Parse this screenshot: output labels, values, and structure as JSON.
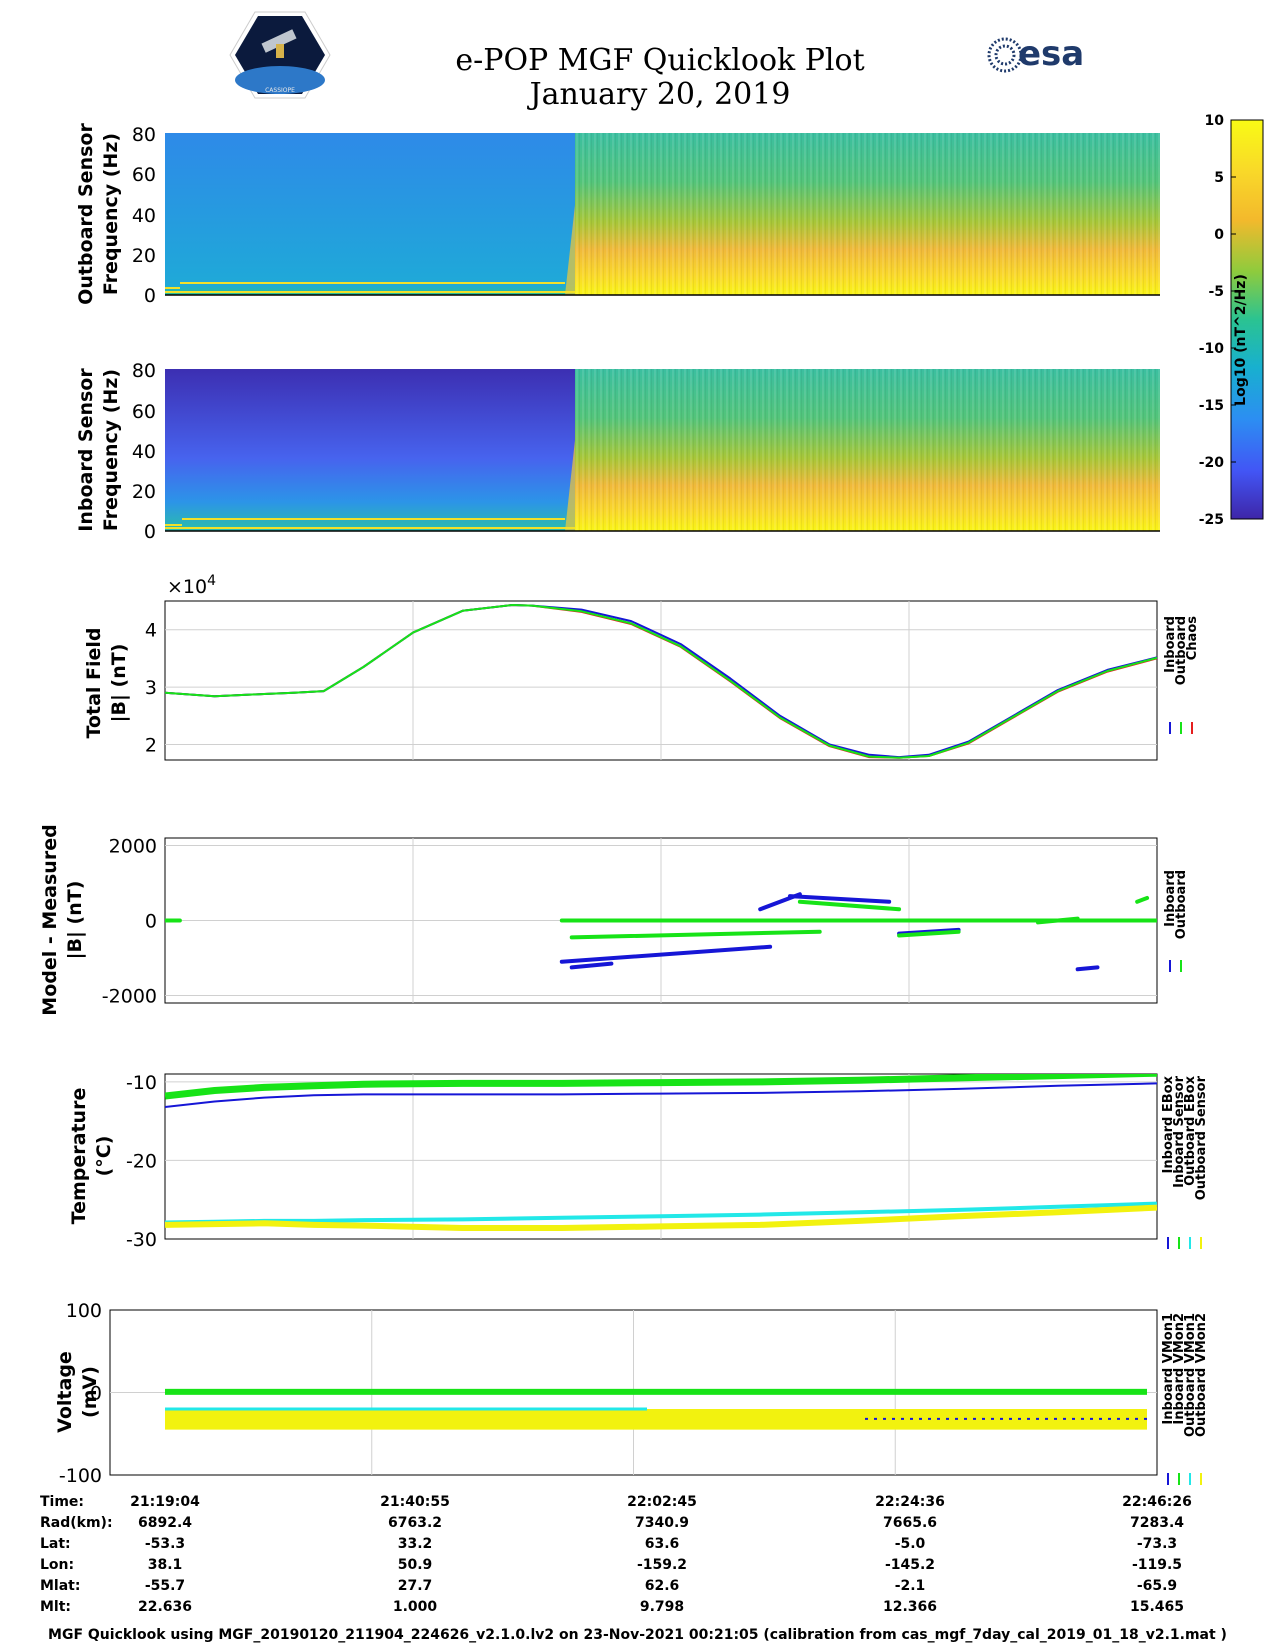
{
  "title": {
    "line1": "e-POP MGF Quicklook Plot",
    "line2": "January 20, 2019"
  },
  "logos": {
    "left_text": "CASSIOPE",
    "right_text": "esa"
  },
  "colorbar": {
    "label": "Log10 (nT^2/Hz)",
    "ticks": [
      10,
      5,
      0,
      -5,
      -10,
      -15,
      -20,
      -25
    ],
    "range": [
      -25,
      10
    ],
    "colormap": [
      "#3e26a8",
      "#4255f5",
      "#2c8ef2",
      "#18b0cf",
      "#2bc391",
      "#8ecb3d",
      "#f3b92c",
      "#f9d829",
      "#f9fb15"
    ]
  },
  "x_ticks": [
    "21:19:04",
    "21:40:55",
    "22:02:45",
    "22:24:36",
    "22:46:26"
  ],
  "chart_data": [
    {
      "type": "heatmap",
      "name": "outboard-spectrogram",
      "ylabel_line1": "Outboard Sensor",
      "ylabel_line2": "Frequency (Hz)",
      "ylim": [
        0,
        80
      ],
      "yticks": [
        80,
        60,
        40,
        20,
        0
      ],
      "transition_fraction": 0.41
    },
    {
      "type": "heatmap",
      "name": "inboard-spectrogram",
      "ylabel_line1": "Inboard Sensor",
      "ylabel_line2": "Frequency (Hz)",
      "ylim": [
        0,
        80
      ],
      "yticks": [
        80,
        60,
        40,
        20,
        0
      ],
      "transition_fraction": 0.41
    },
    {
      "type": "line",
      "name": "total-field",
      "ylabel_line1": "Total Field",
      "ylabel_line2": "|B| (nT)",
      "ylim": [
        1.73,
        4.5
      ],
      "yticks": [
        4,
        3,
        2
      ],
      "exponent_label": "×10",
      "exponent_power": "4",
      "x": [
        0,
        0.05,
        0.1,
        0.13,
        0.16,
        0.2,
        0.25,
        0.3,
        0.35,
        0.37,
        0.42,
        0.47,
        0.52,
        0.57,
        0.62,
        0.67,
        0.71,
        0.74,
        0.77,
        0.81,
        0.85,
        0.9,
        0.95,
        1.0
      ],
      "series": [
        {
          "name": "Inboard",
          "color": "#1616d6",
          "values": [
            2.9,
            2.84,
            2.88,
            2.9,
            2.93,
            3.35,
            3.95,
            4.33,
            4.43,
            4.42,
            4.35,
            4.15,
            3.75,
            3.15,
            2.5,
            2.0,
            1.82,
            1.78,
            1.82,
            2.05,
            2.45,
            2.95,
            3.3,
            3.52
          ]
        },
        {
          "name": "Outboard",
          "color": "#17e317",
          "values": [
            2.9,
            2.84,
            2.88,
            2.9,
            2.93,
            3.35,
            3.95,
            4.33,
            4.43,
            4.42,
            4.32,
            4.11,
            3.71,
            3.11,
            2.47,
            1.98,
            1.79,
            1.77,
            1.8,
            2.03,
            2.43,
            2.93,
            3.28,
            3.51
          ]
        },
        {
          "name": "Chaos",
          "color": "#e51e1e",
          "values": [
            2.9,
            2.84,
            2.88,
            2.9,
            2.93,
            3.35,
            3.95,
            4.33,
            4.43,
            4.42,
            4.31,
            4.1,
            3.7,
            3.1,
            2.46,
            1.97,
            1.78,
            1.77,
            1.8,
            2.02,
            2.42,
            2.92,
            3.27,
            3.5
          ]
        }
      ]
    },
    {
      "type": "scatter",
      "name": "model-minus-measured",
      "ylabel_line1": "Model - Measured",
      "ylabel_line2": "|B| (nT)",
      "ylim": [
        -2200,
        2200
      ],
      "yticks": [
        2000,
        0,
        -2000
      ],
      "series": [
        {
          "name": "Inboard",
          "color": "#1616d6",
          "segments": [
            [
              0.4,
              0.61,
              -1100,
              -700
            ],
            [
              0.41,
              0.45,
              -1250,
              -1150
            ],
            [
              0.6,
              0.64,
              300,
              700
            ],
            [
              0.63,
              0.73,
              650,
              500
            ],
            [
              0.74,
              0.8,
              -350,
              -250
            ],
            [
              0.92,
              0.94,
              -1300,
              -1250
            ]
          ]
        },
        {
          "name": "Outboard",
          "color": "#17e317",
          "segments": [
            [
              0.0,
              0.015,
              0,
              0
            ],
            [
              0.4,
              1.0,
              0,
              0
            ],
            [
              0.41,
              0.66,
              -450,
              -300
            ],
            [
              0.64,
              0.74,
              500,
              300
            ],
            [
              0.74,
              0.8,
              -400,
              -300
            ],
            [
              0.88,
              0.92,
              -50,
              50
            ],
            [
              0.98,
              0.99,
              500,
              600
            ]
          ]
        }
      ]
    },
    {
      "type": "line",
      "name": "temperature",
      "ylabel_line1": "Temperature",
      "ylabel_line2": "(°C)",
      "ylim": [
        -30,
        -9
      ],
      "yticks": [
        -10,
        -20,
        -30
      ],
      "x": [
        0,
        0.05,
        0.1,
        0.15,
        0.2,
        0.3,
        0.4,
        0.5,
        0.6,
        0.7,
        0.8,
        0.9,
        1.0
      ],
      "series": [
        {
          "name": "Inboard EBox",
          "color": "#1616d6",
          "values": [
            -13.2,
            -12.5,
            -12.0,
            -11.7,
            -11.6,
            -11.6,
            -11.6,
            -11.5,
            -11.4,
            -11.2,
            -10.9,
            -10.5,
            -10.2
          ]
        },
        {
          "name": "Inboard Sensor",
          "color": "#17e317",
          "values": [
            -11.8,
            -11.1,
            -10.7,
            -10.5,
            -10.3,
            -10.2,
            -10.2,
            -10.1,
            -10.0,
            -9.8,
            -9.5,
            -9.2,
            -8.9
          ]
        },
        {
          "name": "Outboard EBox",
          "color": "#22e8e8",
          "values": [
            -27.9,
            -27.8,
            -27.7,
            -27.7,
            -27.6,
            -27.5,
            -27.3,
            -27.1,
            -26.9,
            -26.6,
            -26.3,
            -25.9,
            -25.5
          ]
        },
        {
          "name": "Outboard Sensor",
          "color": "#f2f20f",
          "values": [
            -28.2,
            -28.1,
            -28.0,
            -28.2,
            -28.3,
            -28.6,
            -28.6,
            -28.4,
            -28.2,
            -27.7,
            -27.1,
            -26.6,
            -26.0
          ]
        }
      ]
    },
    {
      "type": "line",
      "name": "voltage",
      "ylabel_line1": "Voltage",
      "ylabel_line2": "(mV)",
      "ylim": [
        -100,
        100
      ],
      "yticks": [
        100,
        0,
        -100
      ],
      "series": [
        {
          "name": "Inboard VMon1",
          "color": "#1616d6",
          "values": [
            -32,
            -32
          ]
        },
        {
          "name": "Inboard VMon2",
          "color": "#17e317",
          "values": [
            2,
            2
          ]
        },
        {
          "name": "Outboard VMon1",
          "color": "#22e8e8",
          "values": [
            -20,
            -20
          ]
        },
        {
          "name": "Outboard VMon2",
          "color": "#f2f20f",
          "values": [
            -30,
            -30
          ]
        }
      ]
    }
  ],
  "orbit_table": {
    "labels": [
      "Time:",
      "Rad(km):",
      "Lat:",
      "Lon:",
      "Mlat:",
      "Mlt:"
    ],
    "columns": [
      [
        "21:19:04",
        "6892.4",
        "-53.3",
        "38.1",
        "-55.7",
        "22.636"
      ],
      [
        "21:40:55",
        "6763.2",
        "33.2",
        "50.9",
        "27.7",
        "1.000"
      ],
      [
        "22:02:45",
        "7340.9",
        "63.6",
        "-159.2",
        "62.6",
        "9.798"
      ],
      [
        "22:24:36",
        "7665.6",
        "-5.0",
        "-145.2",
        "-2.1",
        "12.366"
      ],
      [
        "22:46:26",
        "7283.4",
        "-73.3",
        "-119.5",
        "-65.9",
        "15.465"
      ]
    ]
  },
  "footer": "MGF Quicklook using MGF_20190120_211904_224626_v2.1.0.lv2 on 23-Nov-2021 00:21:05 (calibration from cas_mgf_7day_cal_2019_01_18_v2.1.mat )"
}
